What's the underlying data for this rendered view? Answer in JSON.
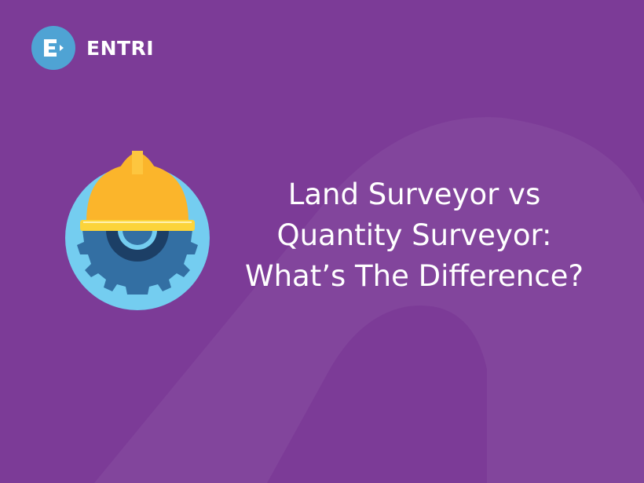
{
  "brand": {
    "name": "ENTRI",
    "logo_letter": "E"
  },
  "title_lines": [
    "Land Surveyor vs",
    "Quantity Surveyor:",
    "What’s The Difference?"
  ],
  "illustration": {
    "icon": "hard-hat-gear-icon"
  },
  "colors": {
    "background": "#7c3b97",
    "logo_circle": "#4fa3d4",
    "hat": "#fbb52b",
    "gear": "#2f6a9c",
    "icon_circle": "#74cdf0"
  }
}
